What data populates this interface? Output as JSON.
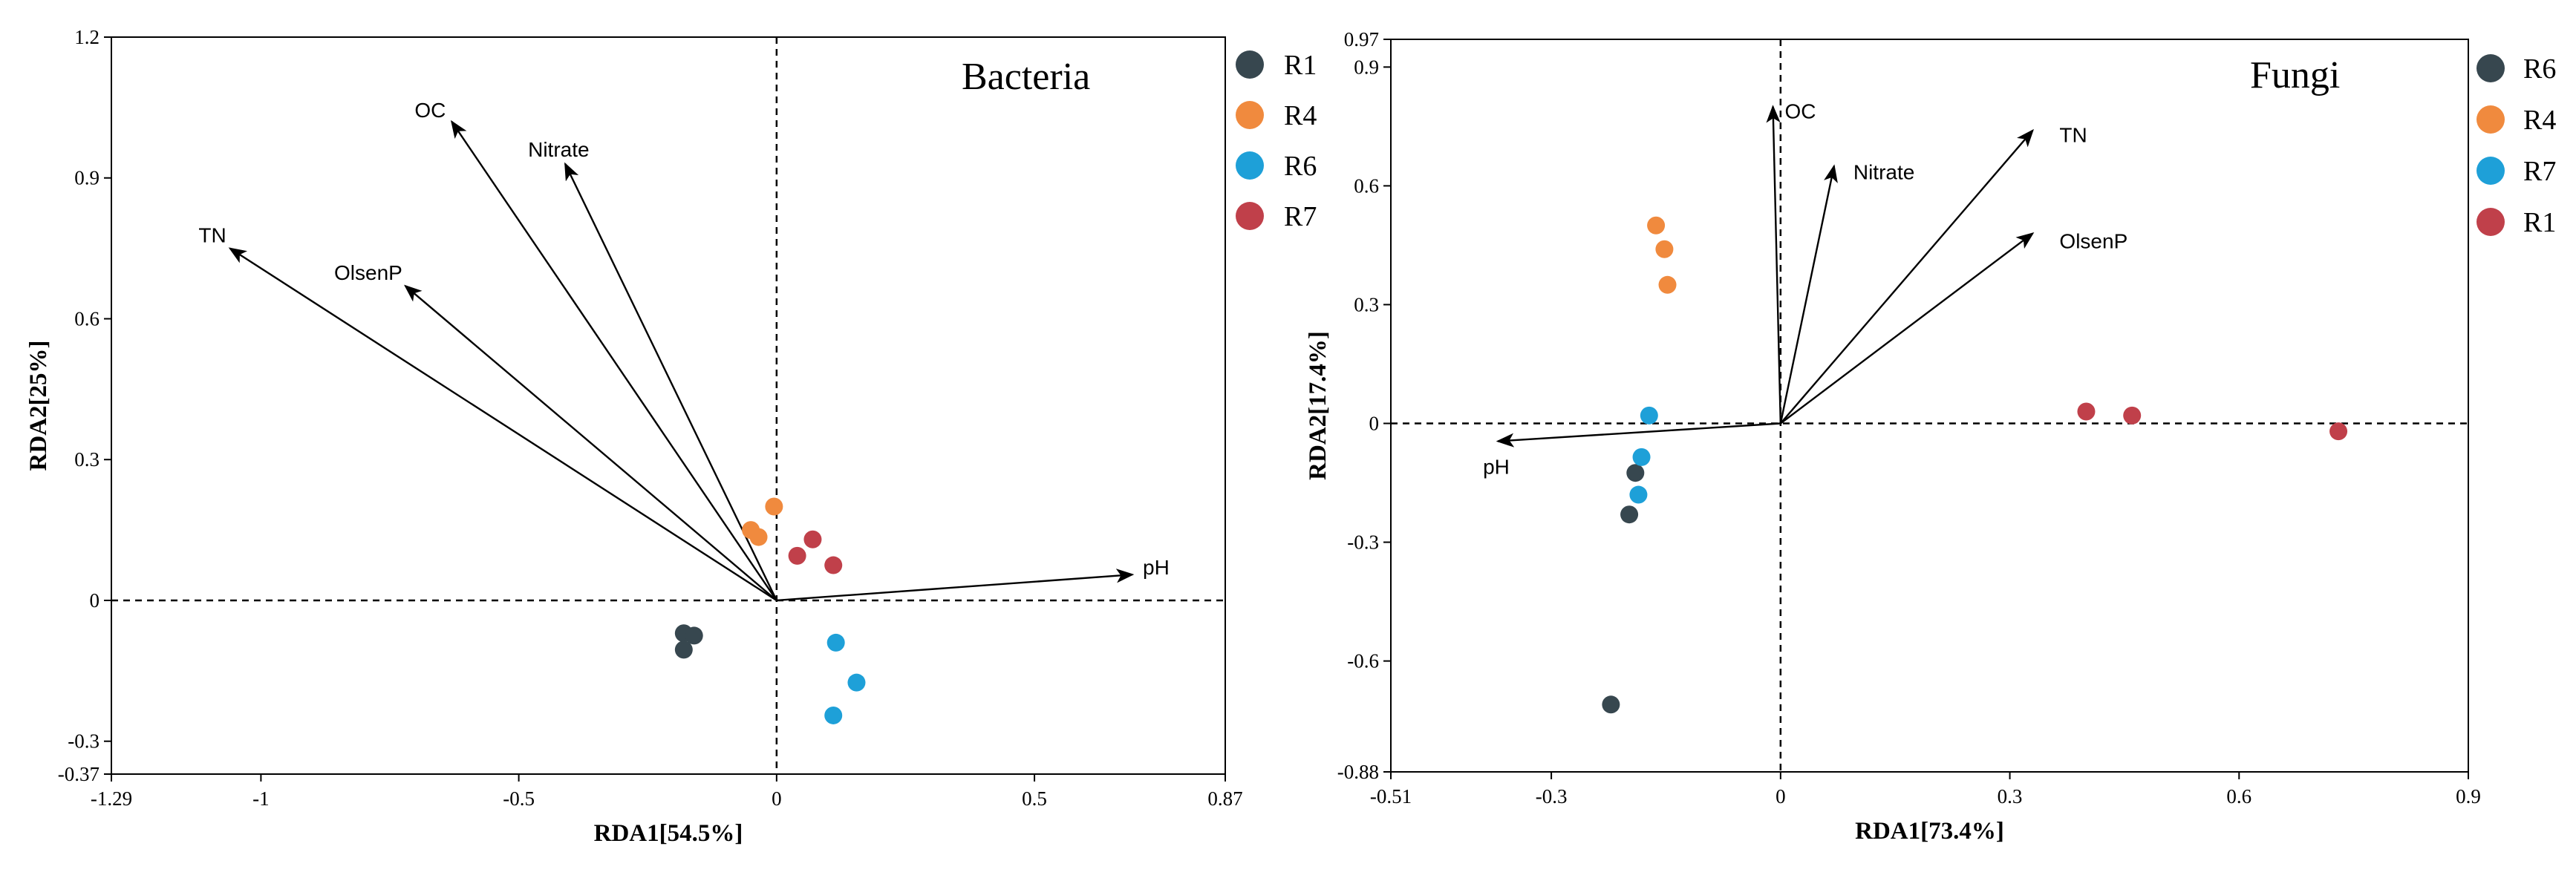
{
  "chart_data": [
    {
      "type": "scatter",
      "subtype": "rda-biplot",
      "title": "Bacteria",
      "xlabel": "RDA1[54.5%]",
      "ylabel": "RDA2[25%]",
      "xlim": [
        -1.29,
        0.87
      ],
      "ylim": [
        -0.37,
        1.2
      ],
      "xticks": [
        -1.29,
        -1,
        -0.5,
        0,
        0.5,
        0.87
      ],
      "yticks": [
        -0.37,
        -0.3,
        0,
        0.3,
        0.6,
        0.9,
        1.2
      ],
      "colors": {
        "R1": "#37474f",
        "R4": "#f08a3e",
        "R6": "#1ea0d8",
        "R7": "#c0404a"
      },
      "series": [
        {
          "name": "R1",
          "color": "#37474f",
          "points": [
            [
              -0.18,
              -0.07
            ],
            [
              -0.16,
              -0.075
            ],
            [
              -0.18,
              -0.105
            ]
          ]
        },
        {
          "name": "R4",
          "color": "#f08a3e",
          "points": [
            [
              -0.005,
              0.2
            ],
            [
              -0.05,
              0.15
            ],
            [
              -0.035,
              0.135
            ]
          ]
        },
        {
          "name": "R6",
          "color": "#1ea0d8",
          "points": [
            [
              0.115,
              -0.09
            ],
            [
              0.155,
              -0.175
            ],
            [
              0.11,
              -0.245
            ]
          ]
        },
        {
          "name": "R7",
          "color": "#c0404a",
          "points": [
            [
              0.07,
              0.13
            ],
            [
              0.04,
              0.095
            ],
            [
              0.11,
              0.075
            ]
          ]
        }
      ],
      "vectors": [
        {
          "label": "OC",
          "x": -0.63,
          "y": 1.02
        },
        {
          "label": "Nitrate",
          "x": -0.41,
          "y": 0.93
        },
        {
          "label": "TN",
          "x": -1.06,
          "y": 0.75
        },
        {
          "label": "OlsenP",
          "x": -0.72,
          "y": 0.67
        },
        {
          "label": "pH",
          "x": 0.69,
          "y": 0.055
        }
      ]
    },
    {
      "type": "scatter",
      "subtype": "rda-biplot",
      "title": "Fungi",
      "xlabel": "RDA1[73.4%]",
      "ylabel": "RDA2[17.4%]",
      "xlim": [
        -0.51,
        0.9
      ],
      "ylim": [
        -0.88,
        0.97
      ],
      "xticks": [
        -0.51,
        -0.3,
        0,
        0.3,
        0.6,
        0.9
      ],
      "yticks": [
        -0.88,
        -0.6,
        -0.3,
        0,
        0.3,
        0.6,
        0.9,
        0.97
      ],
      "colors": {
        "R6": "#37474f",
        "R4": "#f08a3e",
        "R7": "#1ea0d8",
        "R1": "#c0404a"
      },
      "series": [
        {
          "name": "R6",
          "color": "#37474f",
          "points": [
            [
              -0.19,
              -0.125
            ],
            [
              -0.198,
              -0.23
            ],
            [
              -0.222,
              -0.71
            ]
          ]
        },
        {
          "name": "R4",
          "color": "#f08a3e",
          "points": [
            [
              -0.163,
              0.5
            ],
            [
              -0.152,
              0.44
            ],
            [
              -0.148,
              0.35
            ]
          ]
        },
        {
          "name": "R7",
          "color": "#1ea0d8",
          "points": [
            [
              -0.172,
              0.02
            ],
            [
              -0.182,
              -0.085
            ],
            [
              -0.186,
              -0.18
            ]
          ]
        },
        {
          "name": "R1",
          "color": "#c0404a",
          "points": [
            [
              0.4,
              0.03
            ],
            [
              0.46,
              0.02
            ],
            [
              0.73,
              -0.02
            ]
          ]
        }
      ],
      "vectors": [
        {
          "label": "OC",
          "x": -0.01,
          "y": 0.8
        },
        {
          "label": "Nitrate",
          "x": 0.07,
          "y": 0.65
        },
        {
          "label": "TN",
          "x": 0.33,
          "y": 0.74
        },
        {
          "label": "OlsenP",
          "x": 0.33,
          "y": 0.48
        },
        {
          "label": "pH",
          "x": -0.37,
          "y": -0.045
        }
      ]
    }
  ]
}
